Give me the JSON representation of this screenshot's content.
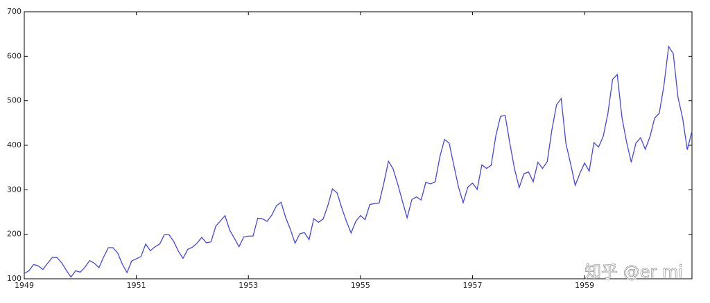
{
  "chart_data": {
    "type": "line",
    "x": [
      1949,
      1949.083,
      1949.167,
      1949.25,
      1949.333,
      1949.417,
      1949.5,
      1949.583,
      1949.667,
      1949.75,
      1949.833,
      1949.917,
      1950,
      1950.083,
      1950.167,
      1950.25,
      1950.333,
      1950.417,
      1950.5,
      1950.583,
      1950.667,
      1950.75,
      1950.833,
      1950.917,
      1951,
      1951.083,
      1951.167,
      1951.25,
      1951.333,
      1951.417,
      1951.5,
      1951.583,
      1951.667,
      1951.75,
      1951.833,
      1951.917,
      1952,
      1952.083,
      1952.167,
      1952.25,
      1952.333,
      1952.417,
      1952.5,
      1952.583,
      1952.667,
      1952.75,
      1952.833,
      1952.917,
      1953,
      1953.083,
      1953.167,
      1953.25,
      1953.333,
      1953.417,
      1953.5,
      1953.583,
      1953.667,
      1953.75,
      1953.833,
      1953.917,
      1954,
      1954.083,
      1954.167,
      1954.25,
      1954.333,
      1954.417,
      1954.5,
      1954.583,
      1954.667,
      1954.75,
      1954.833,
      1954.917,
      1955,
      1955.083,
      1955.167,
      1955.25,
      1955.333,
      1955.417,
      1955.5,
      1955.583,
      1955.667,
      1955.75,
      1955.833,
      1955.917,
      1956,
      1956.083,
      1956.167,
      1956.25,
      1956.333,
      1956.417,
      1956.5,
      1956.583,
      1956.667,
      1956.75,
      1956.833,
      1956.917,
      1957,
      1957.083,
      1957.167,
      1957.25,
      1957.333,
      1957.417,
      1957.5,
      1957.583,
      1957.667,
      1957.75,
      1957.833,
      1957.917,
      1958,
      1958.083,
      1958.167,
      1958.25,
      1958.333,
      1958.417,
      1958.5,
      1958.583,
      1958.667,
      1958.75,
      1958.833,
      1958.917,
      1959,
      1959.083,
      1959.167,
      1959.25,
      1959.333,
      1959.417,
      1959.5,
      1959.583,
      1959.667,
      1959.75,
      1959.833,
      1959.917,
      1960,
      1960.083,
      1960.167,
      1960.25,
      1960.333,
      1960.417,
      1960.5,
      1960.583,
      1960.667,
      1960.75,
      1960.833,
      1960.917
    ],
    "series": [
      {
        "color": "#4545e0",
        "values": [
          112,
          118,
          132,
          129,
          121,
          135,
          148,
          148,
          136,
          119,
          104,
          118,
          115,
          126,
          141,
          135,
          125,
          149,
          170,
          170,
          158,
          133,
          114,
          140,
          145,
          150,
          178,
          163,
          172,
          178,
          199,
          199,
          184,
          162,
          146,
          166,
          171,
          180,
          193,
          181,
          183,
          218,
          230,
          242,
          209,
          191,
          172,
          194,
          196,
          196,
          236,
          235,
          229,
          243,
          264,
          272,
          237,
          211,
          180,
          201,
          204,
          188,
          235,
          227,
          234,
          264,
          302,
          293,
          259,
          229,
          203,
          229,
          242,
          233,
          267,
          269,
          270,
          315,
          364,
          347,
          312,
          274,
          237,
          278,
          284,
          277,
          317,
          313,
          318,
          374,
          413,
          405,
          355,
          306,
          271,
          306,
          315,
          301,
          356,
          348,
          355,
          422,
          465,
          467,
          404,
          347,
          305,
          336,
          340,
          318,
          362,
          348,
          363,
          435,
          491,
          505,
          404,
          359,
          310,
          337,
          360,
          342,
          406,
          396,
          420,
          472,
          548,
          559,
          463,
          407,
          362,
          405,
          417,
          391,
          419,
          461,
          472,
          535,
          622,
          606,
          508,
          461,
          390,
          432
        ]
      }
    ],
    "xlim": [
      1949,
      1960.917
    ],
    "xticks": [
      1949,
      1951,
      1953,
      1955,
      1957,
      1959
    ],
    "ylim": [
      100,
      700
    ],
    "yticks": [
      100,
      200,
      300,
      400,
      500,
      600,
      700
    ],
    "grid": false
  },
  "watermark": "知乎 @er mi"
}
